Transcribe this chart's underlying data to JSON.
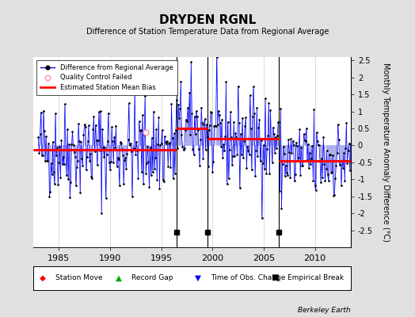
{
  "title": "DRYDEN RGNL",
  "subtitle": "Difference of Station Temperature Data from Regional Average",
  "ylabel_right": "Monthly Temperature Anomaly Difference (°C)",
  "xlim": [
    1982.5,
    2013.5
  ],
  "ylim": [
    -3.0,
    2.6
  ],
  "yticks": [
    -2.5,
    -2,
    -1.5,
    -1,
    -0.5,
    0,
    0.5,
    1,
    1.5,
    2,
    2.5
  ],
  "xticks": [
    1985,
    1990,
    1995,
    2000,
    2005,
    2010
  ],
  "bg_color": "#e0e0e0",
  "bias_segments": [
    {
      "x_start": 1982.5,
      "x_end": 1996.5,
      "bias": -0.12
    },
    {
      "x_start": 1996.5,
      "x_end": 1999.5,
      "bias": 0.5
    },
    {
      "x_start": 1999.5,
      "x_end": 2006.5,
      "bias": 0.2
    },
    {
      "x_start": 2006.5,
      "x_end": 2013.5,
      "bias": -0.45
    }
  ],
  "break_years": [
    1996.5,
    1999.5,
    2006.5
  ],
  "qc_failed_year": 1993.5,
  "qc_failed_value": 0.38,
  "seed": 42,
  "start_year": 1983,
  "end_year": 2013,
  "watermark": "Berkeley Earth"
}
